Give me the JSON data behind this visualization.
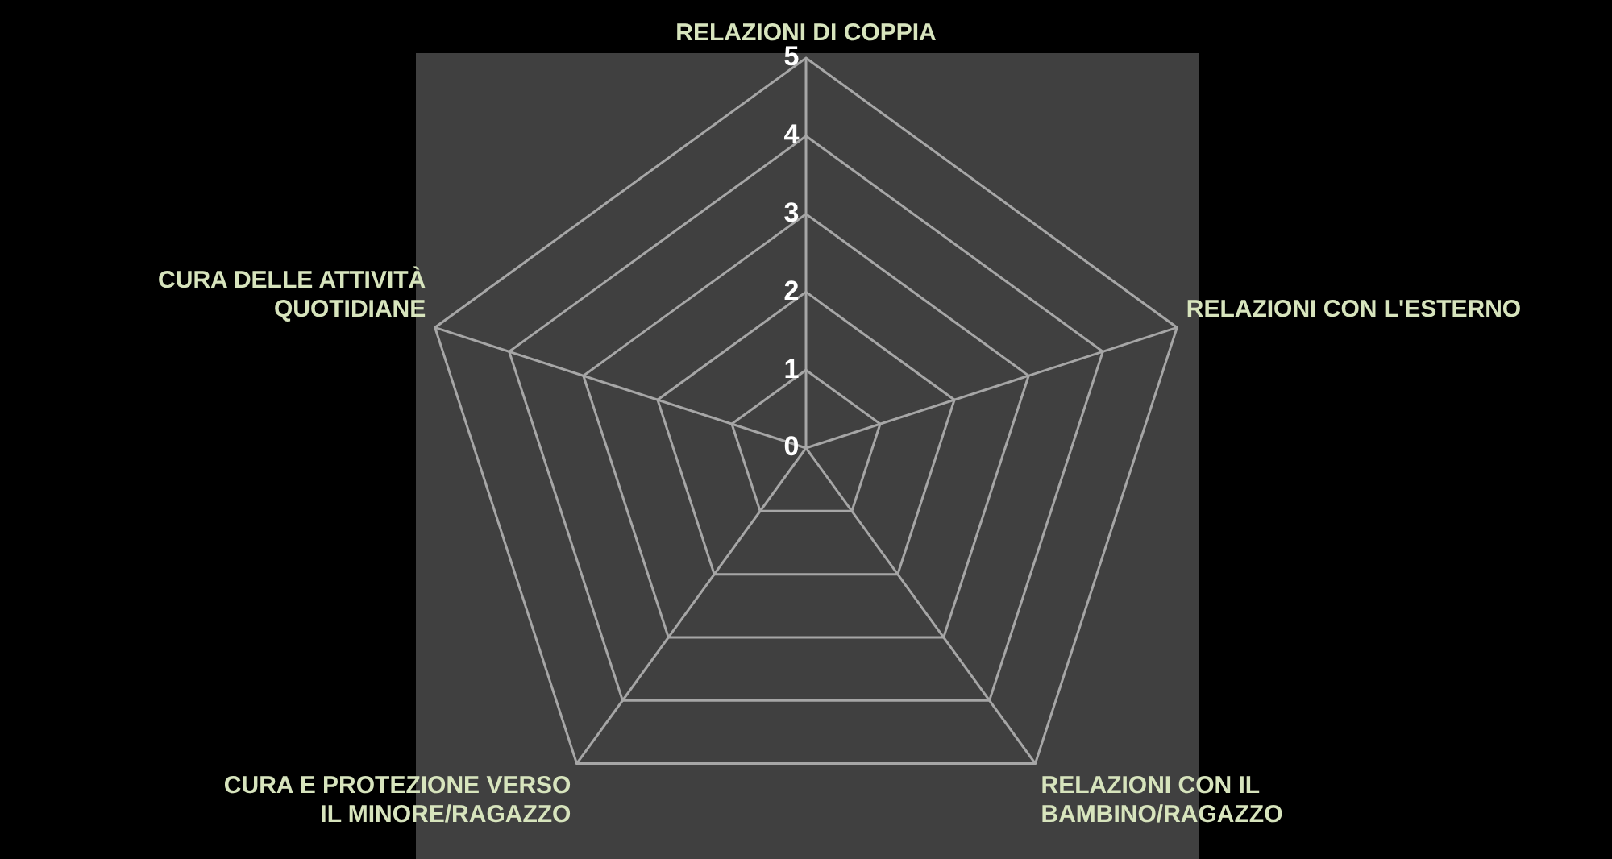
{
  "chart_data": {
    "type": "radar",
    "categories": [
      "RELAZIONI DI COPPIA",
      "RELAZIONI CON L'ESTERNO",
      "RELAZIONI CON IL BAMBINO/RAGAZZO",
      "CURA E PROTEZIONE VERSO IL MINORE/RAGAZZO",
      "CURA DELLE ATTIVITÀ QUOTIDIANE"
    ],
    "ylim": [
      0,
      5
    ],
    "yticks": [
      0,
      1,
      2,
      3,
      4,
      5
    ],
    "grid": true
  }
}
